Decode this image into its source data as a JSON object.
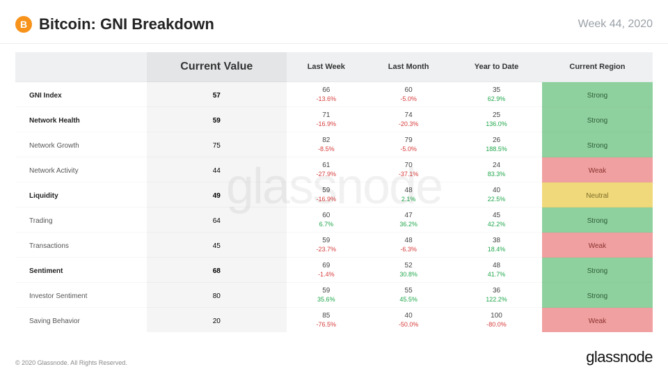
{
  "header": {
    "title": "Bitcoin: GNI Breakdown",
    "week": "Week 44, 2020",
    "logo_letter": "B",
    "logo_bg": "#f7931a"
  },
  "columns": {
    "current": "Current Value",
    "last_week": "Last Week",
    "last_month": "Last Month",
    "ytd": "Year to Date",
    "region": "Current Region"
  },
  "rows": [
    {
      "label": "GNI Index",
      "bold": true,
      "current": "57",
      "last_week": "66",
      "last_week_delta": "-13.6%",
      "last_week_sign": "neg",
      "last_month": "60",
      "last_month_delta": "-5.0%",
      "last_month_sign": "neg",
      "ytd": "35",
      "ytd_delta": "62.9%",
      "ytd_sign": "pos",
      "region": "Strong",
      "region_class": "reg-strong"
    },
    {
      "label": "Network Health",
      "bold": true,
      "current": "59",
      "last_week": "71",
      "last_week_delta": "-16.9%",
      "last_week_sign": "neg",
      "last_month": "74",
      "last_month_delta": "-20.3%",
      "last_month_sign": "neg",
      "ytd": "25",
      "ytd_delta": "136.0%",
      "ytd_sign": "pos",
      "region": "Strong",
      "region_class": "reg-strong"
    },
    {
      "label": "Network Growth",
      "bold": false,
      "current": "75",
      "last_week": "82",
      "last_week_delta": "-8.5%",
      "last_week_sign": "neg",
      "last_month": "79",
      "last_month_delta": "-5.0%",
      "last_month_sign": "neg",
      "ytd": "26",
      "ytd_delta": "188.5%",
      "ytd_sign": "pos",
      "region": "Strong",
      "region_class": "reg-strong"
    },
    {
      "label": "Network Activity",
      "bold": false,
      "current": "44",
      "last_week": "61",
      "last_week_delta": "-27.9%",
      "last_week_sign": "neg",
      "last_month": "70",
      "last_month_delta": "-37.1%",
      "last_month_sign": "neg",
      "ytd": "24",
      "ytd_delta": "83.3%",
      "ytd_sign": "pos",
      "region": "Weak",
      "region_class": "reg-weak"
    },
    {
      "label": "Liquidity",
      "bold": true,
      "current": "49",
      "last_week": "59",
      "last_week_delta": "-16.9%",
      "last_week_sign": "neg",
      "last_month": "48",
      "last_month_delta": "2.1%",
      "last_month_sign": "pos",
      "ytd": "40",
      "ytd_delta": "22.5%",
      "ytd_sign": "pos",
      "region": "Neutral",
      "region_class": "reg-neutral"
    },
    {
      "label": "Trading",
      "bold": false,
      "current": "64",
      "last_week": "60",
      "last_week_delta": "6.7%",
      "last_week_sign": "pos",
      "last_month": "47",
      "last_month_delta": "36.2%",
      "last_month_sign": "pos",
      "ytd": "45",
      "ytd_delta": "42.2%",
      "ytd_sign": "pos",
      "region": "Strong",
      "region_class": "reg-strong"
    },
    {
      "label": "Transactions",
      "bold": false,
      "current": "45",
      "last_week": "59",
      "last_week_delta": "-23.7%",
      "last_week_sign": "neg",
      "last_month": "48",
      "last_month_delta": "-6.3%",
      "last_month_sign": "neg",
      "ytd": "38",
      "ytd_delta": "18.4%",
      "ytd_sign": "pos",
      "region": "Weak",
      "region_class": "reg-weak"
    },
    {
      "label": "Sentiment",
      "bold": true,
      "current": "68",
      "last_week": "69",
      "last_week_delta": "-1.4%",
      "last_week_sign": "neg",
      "last_month": "52",
      "last_month_delta": "30.8%",
      "last_month_sign": "pos",
      "ytd": "48",
      "ytd_delta": "41.7%",
      "ytd_sign": "pos",
      "region": "Strong",
      "region_class": "reg-strong"
    },
    {
      "label": "Investor Sentiment",
      "bold": false,
      "current": "80",
      "last_week": "59",
      "last_week_delta": "35.6%",
      "last_week_sign": "pos",
      "last_month": "55",
      "last_month_delta": "45.5%",
      "last_month_sign": "pos",
      "ytd": "36",
      "ytd_delta": "122.2%",
      "ytd_sign": "pos",
      "region": "Strong",
      "region_class": "reg-strong"
    },
    {
      "label": "Saving Behavior",
      "bold": false,
      "current": "20",
      "last_week": "85",
      "last_week_delta": "-76.5%",
      "last_week_sign": "neg",
      "last_month": "40",
      "last_month_delta": "-50.0%",
      "last_month_sign": "neg",
      "ytd": "100",
      "ytd_delta": "-80.0%",
      "ytd_sign": "neg",
      "region": "Weak",
      "region_class": "reg-weak"
    }
  ],
  "watermark": "glassnode",
  "footer": {
    "copyright": "© 2020 Glassnode. All Rights Reserved.",
    "brand": "glassnode"
  },
  "colors": {
    "pos": "#1fa64a",
    "neg": "#d73a3a",
    "strong_bg": "#8fd19e",
    "neutral_bg": "#f0d97a",
    "weak_bg": "#f0a0a0"
  }
}
